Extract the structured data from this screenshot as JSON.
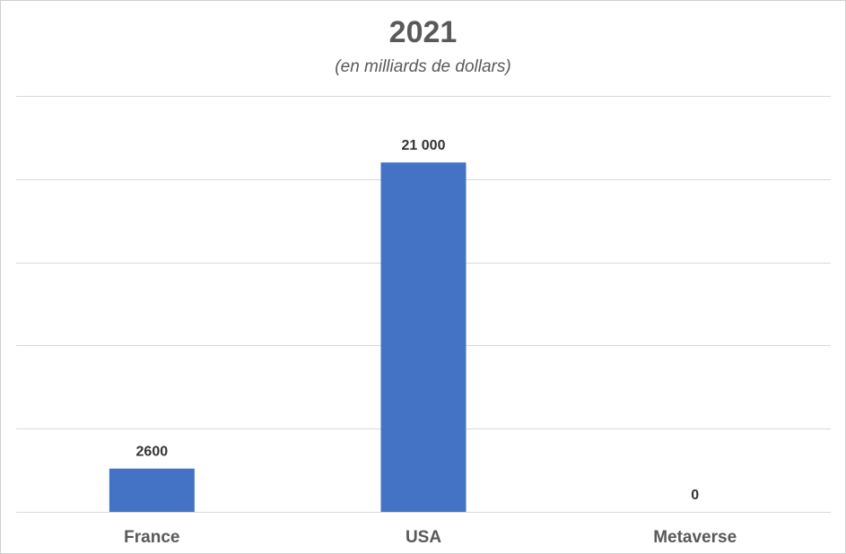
{
  "chart_data": {
    "type": "bar",
    "title": "2021",
    "subtitle": "(en milliards de dollars)",
    "categories": [
      "France",
      "USA",
      "Metaverse"
    ],
    "values": [
      2600,
      21000,
      0
    ],
    "data_labels": [
      "2600",
      "21 000",
      "0"
    ],
    "ylim": [
      0,
      25000
    ],
    "grid": true,
    "legend": "none",
    "bar_color": "#4472C4",
    "gridline_color": "#D9D9D9"
  }
}
